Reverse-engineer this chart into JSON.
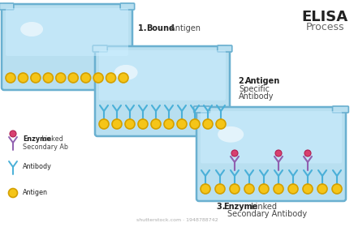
{
  "title": "ELISA",
  "subtitle": "Process",
  "bg_color": "#ffffff",
  "well_fill": "#b8dff0",
  "well_fill_dark": "#8ec8e8",
  "well_border": "#6ab0d0",
  "well_inner": "#cceeff",
  "antigen_color": "#f5c518",
  "antigen_outline": "#d4a000",
  "antibody_color": "#4ab0d8",
  "enzyme_ab_color": "#9060b0",
  "enzyme_ball_color": "#d84070",
  "label1_bold": "1. Bound",
  "label1_rest": " Antigen",
  "label2_bold": "2. Antigen",
  "label2_rest": " Specific\nAntibody",
  "label3_bold": "3. Enzyme",
  "label3_rest": " Linked\nSecondary Antibody",
  "leg_enzyme_bold": "Enzyme",
  "leg_enzyme_rest": " Linked\nSecondary Ab",
  "leg_antibody": "Antibody",
  "leg_antigen": "Antigen",
  "watermark": "shutterstock.com · 1948788742"
}
